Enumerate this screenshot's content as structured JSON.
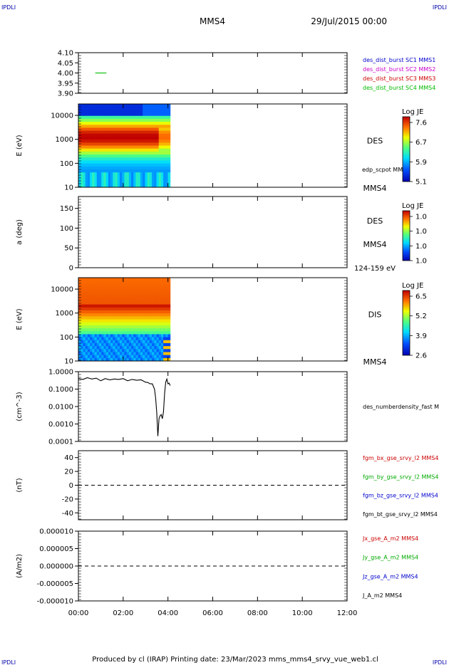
{
  "page": {
    "corner_tl": "IPDLI",
    "corner_tr": "IPDLI",
    "corner_bl": "IPDLI",
    "corner_br": "IPDLI",
    "spacecraft": "MMS4",
    "datetime": "29/Jul/2015 00:00",
    "footer": "Produced by cl (IRAP)   Printing date: 23/Mar/2023   mms_mms4_srvy_vue_web1.cl",
    "colors": {
      "axes": "#000000",
      "corner": "#0000aa"
    }
  },
  "chart_data": [
    {
      "id": "p1",
      "type": "line",
      "scale": "linear",
      "ylim": [
        3.9,
        4.1
      ],
      "ticks": [
        "4.10",
        "4.05",
        "4.00",
        "3.95",
        "3.90"
      ],
      "tick_values": [
        4.1,
        4.05,
        4.0,
        3.95,
        3.9
      ],
      "ylabel": "",
      "legend": [
        {
          "text": "des_dist_burst SC1 MMS1",
          "color": "#0000cc"
        },
        {
          "text": "des_dist_burst SC2 MMS2",
          "color": "#cc00cc"
        },
        {
          "text": "des_dist_burst SC3 MMS3",
          "color": "#cc0000"
        },
        {
          "text": "des_dist_burst SC4 MMS4",
          "color": "#00bb00"
        }
      ],
      "series": [
        {
          "color": "#00bb00",
          "x": [
            0.75,
            1.25
          ],
          "y": [
            4.0,
            4.0
          ]
        }
      ]
    },
    {
      "id": "p2",
      "type": "heatmap",
      "scale": "log",
      "ylim": [
        10,
        30000
      ],
      "ticks": [
        "10000",
        "1000",
        "100",
        "10"
      ],
      "tick_values": [
        10000,
        1000,
        100,
        10
      ],
      "ylabel": "E (eV)",
      "labels": {
        "species": "DES",
        "sc": "MMS4",
        "overlay": "edp_scpot MMS4"
      },
      "x_end": 4.1,
      "colorbar": {
        "title": "Log JE",
        "ticks": [
          "7.6",
          "6.7",
          "5.9",
          "5.1"
        ]
      }
    },
    {
      "id": "p3",
      "type": "heatmap",
      "scale": "linear",
      "ylim": [
        0,
        180
      ],
      "ticks": [
        "150",
        "100",
        "50",
        "0"
      ],
      "tick_values": [
        150,
        100,
        50,
        0
      ],
      "ylabel": "a (deg)",
      "labels": {
        "species": "DES",
        "sc": "MMS4",
        "energy": "124-159 eV"
      },
      "colorbar": {
        "title": "Log JE",
        "ticks": [
          "1.0",
          "1.0",
          "1.0",
          "1.0"
        ]
      }
    },
    {
      "id": "p4",
      "type": "heatmap",
      "scale": "log",
      "ylim": [
        10,
        30000
      ],
      "ticks": [
        "10000",
        "1000",
        "100",
        "10"
      ],
      "tick_values": [
        10000,
        1000,
        100,
        10
      ],
      "ylabel": "E (eV)",
      "labels": {
        "species": "DIS",
        "sc": "MMS4"
      },
      "x_end": 4.1,
      "colorbar": {
        "title": "Log JE",
        "ticks": [
          "6.5",
          "5.2",
          "3.9",
          "2.6"
        ]
      }
    },
    {
      "id": "p5",
      "type": "line",
      "scale": "log",
      "ylim": [
        0.0001,
        1.0
      ],
      "ticks": [
        "1.0000",
        "0.1000",
        "0.0100",
        "0.0010",
        "0.0001"
      ],
      "tick_values": [
        1.0,
        0.1,
        0.01,
        0.001,
        0.0001
      ],
      "ylabel": "(cm^-3)",
      "legend": [
        {
          "text": "des_numberdensity_fast M",
          "color": "#000000"
        }
      ],
      "series": [
        {
          "color": "#000000",
          "x": [
            0.0,
            0.2,
            0.4,
            0.6,
            0.8,
            1.0,
            1.2,
            1.4,
            1.6,
            1.8,
            2.0,
            2.2,
            2.4,
            2.6,
            2.8,
            3.0,
            3.1,
            3.2,
            3.3,
            3.4,
            3.45,
            3.5,
            3.55,
            3.6,
            3.65,
            3.7,
            3.75,
            3.8,
            3.85,
            3.9,
            3.95,
            4.0,
            4.05,
            4.1
          ],
          "y": [
            0.4,
            0.36,
            0.45,
            0.38,
            0.42,
            0.3,
            0.4,
            0.34,
            0.38,
            0.36,
            0.4,
            0.3,
            0.36,
            0.32,
            0.34,
            0.25,
            0.24,
            0.2,
            0.2,
            0.1,
            0.03,
            0.004,
            0.0002,
            0.002,
            0.003,
            0.0035,
            0.002,
            0.005,
            0.06,
            0.25,
            0.38,
            0.2,
            0.22,
            0.16
          ]
        }
      ]
    },
    {
      "id": "p6",
      "type": "line",
      "scale": "linear",
      "ylim": [
        -50,
        50
      ],
      "ticks": [
        "40",
        "20",
        "0",
        "-20",
        "-40"
      ],
      "tick_values": [
        40,
        20,
        0,
        -20,
        -40
      ],
      "ylabel": "(nT)",
      "zero_line": true,
      "legend": [
        {
          "text": "fgm_bx_gse_srvy_l2 MMS4",
          "color": "#cc0000"
        },
        {
          "text": "fgm_by_gse_srvy_l2 MMS4",
          "color": "#00aa00"
        },
        {
          "text": "fgm_bz_gse_srvy_l2 MMS4",
          "color": "#0000cc"
        },
        {
          "text": "fgm_bt_gse_srvy_l2 MMS4",
          "color": "#000000"
        }
      ]
    },
    {
      "id": "p7",
      "type": "line",
      "scale": "linear",
      "ylim": [
        -1e-05,
        1e-05
      ],
      "ticks": [
        "0.000010",
        "0.000005",
        "0.000000",
        "-0.000005",
        "-0.000010"
      ],
      "tick_values": [
        1e-05,
        5e-06,
        0,
        -5e-06,
        -1e-05
      ],
      "ylabel": "(A/m2)",
      "zero_line": true,
      "legend": [
        {
          "text": "Jx_gse_A_m2 MMS4",
          "color": "#cc0000"
        },
        {
          "text": "Jy_gse_A_m2 MMS4",
          "color": "#00aa00"
        },
        {
          "text": "Jz_gse_A_m2 MMS4",
          "color": "#0000cc"
        },
        {
          "text": "J_A_m2 MMS4",
          "color": "#000000"
        }
      ]
    }
  ],
  "x_axis": {
    "xlim": [
      0,
      12
    ],
    "ticks": [
      "00:00",
      "02:00",
      "04:00",
      "06:00",
      "08:00",
      "10:00",
      "12:00"
    ],
    "tick_values": [
      0,
      2,
      4,
      6,
      8,
      10,
      12
    ]
  }
}
